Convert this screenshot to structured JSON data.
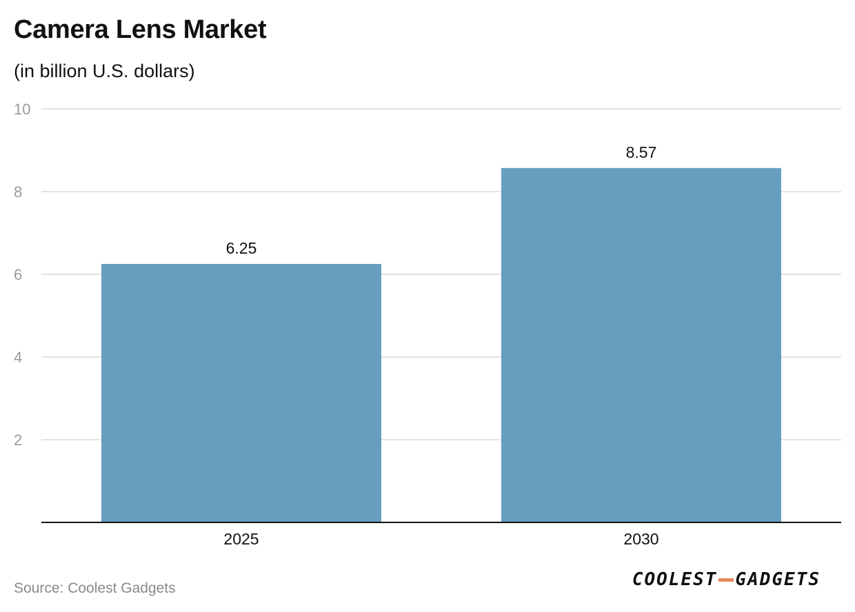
{
  "chart_data": {
    "type": "bar",
    "title": "Camera Lens Market",
    "subtitle": "(in billion U.S. dollars)",
    "categories": [
      "2025",
      "2030"
    ],
    "values": [
      6.25,
      8.57
    ],
    "value_labels": [
      "6.25",
      "8.57"
    ],
    "ylim": [
      0,
      10
    ],
    "yticks": [
      2,
      4,
      6,
      8,
      10
    ],
    "grid": true,
    "bar_color": "#679eBF"
  },
  "footer": {
    "source": "Source: Coolest Gadgets",
    "logo_left": "COOLEST",
    "logo_right": "GADGETS"
  },
  "colors": {
    "bar": "#679ebf",
    "grid": "#e3e3e3",
    "axis": "#111111",
    "tick_text": "#9a9a9a",
    "logo_dash": "#e8885a"
  }
}
